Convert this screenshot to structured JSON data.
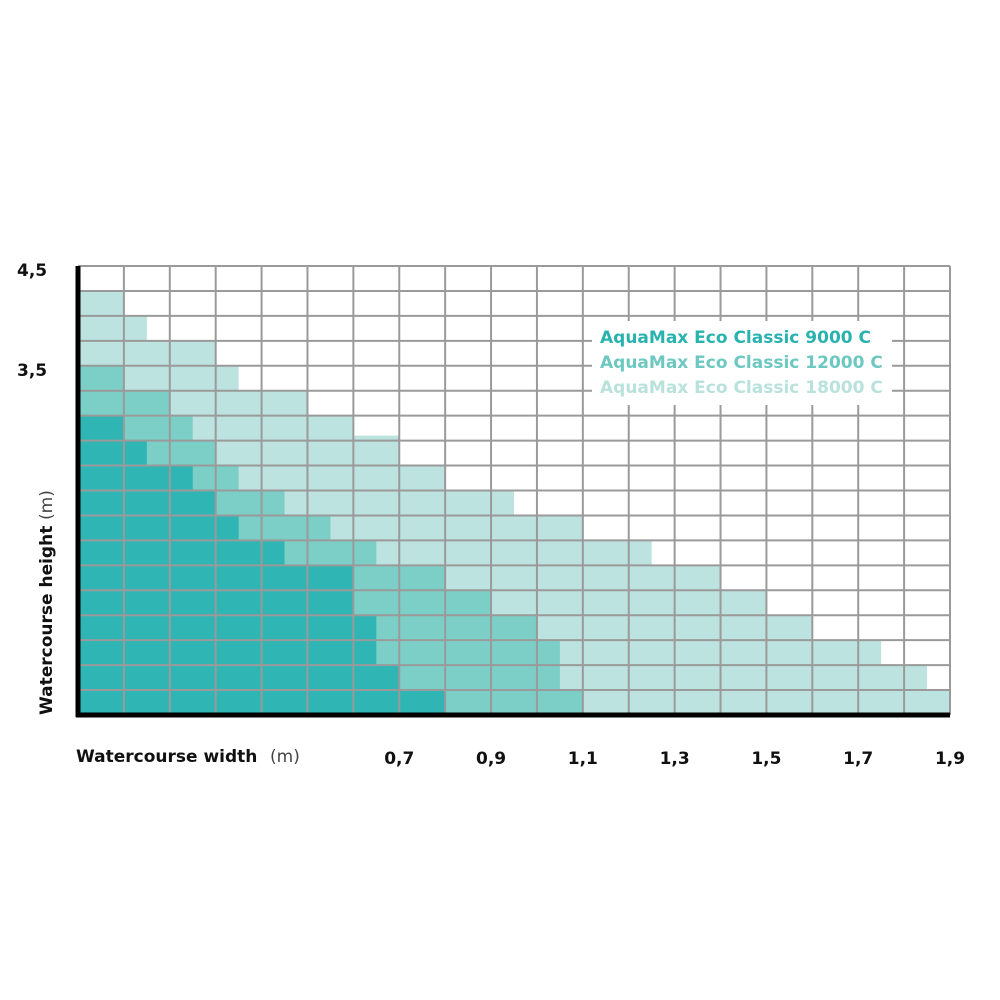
{
  "chart_data": {
    "type": "area",
    "x_tick_labels": [
      "0,7",
      "0,9",
      "1,1",
      "1,3",
      "1,5",
      "1,7",
      "1,9"
    ],
    "y_tick_labels": [
      "4,5",
      "3,5"
    ],
    "xlim": [
      0,
      1.9
    ],
    "ylim": [
      0,
      4.5
    ],
    "xlabel": {
      "text": "Watercourse width",
      "unit": "(m)"
    },
    "ylabel": {
      "text": "Watercourse height",
      "unit": "(m)"
    },
    "grid": true,
    "legend_position": "top-right",
    "series": [
      {
        "name": "AquaMax Eco Classic 18000 C",
        "color": "#bce3df",
        "steps": [
          [
            0.1,
            4.25
          ],
          [
            0.15,
            4.0
          ],
          [
            0.3,
            3.75
          ],
          [
            0.35,
            3.5
          ],
          [
            0.5,
            3.25
          ],
          [
            0.6,
            3.0
          ],
          [
            0.7,
            2.8
          ],
          [
            0.8,
            2.5
          ],
          [
            0.95,
            2.25
          ],
          [
            1.1,
            2.0
          ],
          [
            1.25,
            1.75
          ],
          [
            1.4,
            1.5
          ],
          [
            1.5,
            1.25
          ],
          [
            1.6,
            1.0
          ],
          [
            1.75,
            0.75
          ],
          [
            1.85,
            0.5
          ],
          [
            1.9,
            0.25
          ]
        ]
      },
      {
        "name": "AquaMax Eco Classic 12000 C",
        "color": "#7ccfc7",
        "steps": [
          [
            0.1,
            3.5
          ],
          [
            0.2,
            3.25
          ],
          [
            0.25,
            3.0
          ],
          [
            0.3,
            2.75
          ],
          [
            0.35,
            2.5
          ],
          [
            0.45,
            2.25
          ],
          [
            0.55,
            2.0
          ],
          [
            0.65,
            1.75
          ],
          [
            0.8,
            1.5
          ],
          [
            0.9,
            1.25
          ],
          [
            1.0,
            1.0
          ],
          [
            1.05,
            0.75
          ],
          [
            1.1,
            0.25
          ]
        ]
      },
      {
        "name": "AquaMax Eco Classic 9000 C",
        "color": "#2fb5b4",
        "steps": [
          [
            0.1,
            3.0
          ],
          [
            0.15,
            2.75
          ],
          [
            0.25,
            2.5
          ],
          [
            0.3,
            2.25
          ],
          [
            0.35,
            2.0
          ],
          [
            0.45,
            1.75
          ],
          [
            0.6,
            1.5
          ],
          [
            0.65,
            1.0
          ],
          [
            0.7,
            0.5
          ],
          [
            0.8,
            0.25
          ]
        ]
      }
    ]
  },
  "legend": [
    {
      "label": "AquaMax Eco Classic 9000 C",
      "color": "#2ab3ae"
    },
    {
      "label": "AquaMax Eco Classic 12000 C",
      "color": "#6cc8c0"
    },
    {
      "label": "AquaMax Eco Classic 18000 C",
      "color": "#b9e2dc"
    }
  ],
  "colors": {
    "grid": "#9a9a9a",
    "axis": "#000000"
  }
}
